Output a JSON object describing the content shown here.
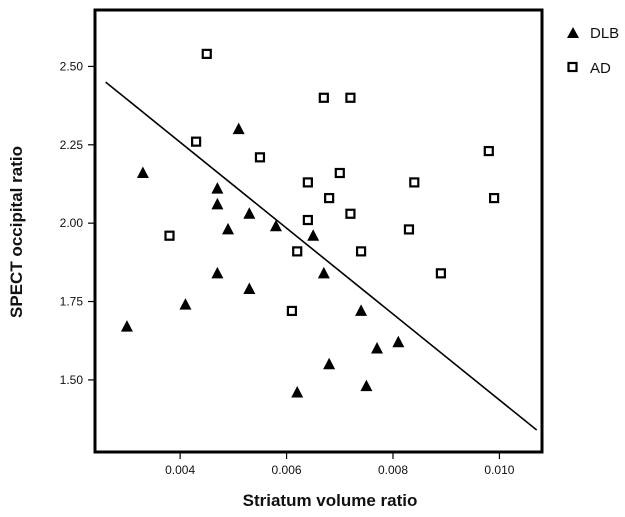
{
  "chart_data": {
    "type": "scatter",
    "xlabel": "Striatum volume ratio",
    "ylabel": "SPECT occipital ratio",
    "xlim": [
      0.0024,
      0.0108
    ],
    "ylim": [
      1.27,
      2.68
    ],
    "x_ticks": [
      0.004,
      0.006,
      0.008,
      0.01
    ],
    "x_tick_labels": [
      "0.004",
      "0.006",
      "0.008",
      "0.010"
    ],
    "y_ticks": [
      1.5,
      1.75,
      2.0,
      2.25,
      2.5
    ],
    "y_tick_labels": [
      "1.50",
      "1.75",
      "2.00",
      "2.25",
      "2.50"
    ],
    "grid": false,
    "legend_position": "top-right, outside plot",
    "series": [
      {
        "name": "DLB",
        "marker": "filled-triangle",
        "color": "#000000",
        "points": [
          [
            0.003,
            1.67
          ],
          [
            0.0033,
            2.16
          ],
          [
            0.0041,
            1.74
          ],
          [
            0.0047,
            2.11
          ],
          [
            0.0047,
            2.06
          ],
          [
            0.0047,
            1.84
          ],
          [
            0.0049,
            1.98
          ],
          [
            0.0051,
            2.3
          ],
          [
            0.0053,
            2.03
          ],
          [
            0.0053,
            1.79
          ],
          [
            0.0058,
            1.99
          ],
          [
            0.0062,
            1.46
          ],
          [
            0.0065,
            1.96
          ],
          [
            0.0067,
            1.84
          ],
          [
            0.0068,
            1.55
          ],
          [
            0.0074,
            1.72
          ],
          [
            0.0075,
            1.48
          ],
          [
            0.0077,
            1.6
          ],
          [
            0.0081,
            1.62
          ]
        ]
      },
      {
        "name": "AD",
        "marker": "open-square",
        "color": "#000000",
        "points": [
          [
            0.0038,
            1.96
          ],
          [
            0.0043,
            2.26
          ],
          [
            0.0045,
            2.54
          ],
          [
            0.0055,
            2.21
          ],
          [
            0.0061,
            1.72
          ],
          [
            0.0062,
            1.91
          ],
          [
            0.0064,
            2.13
          ],
          [
            0.0064,
            2.01
          ],
          [
            0.0067,
            2.4
          ],
          [
            0.0068,
            2.08
          ],
          [
            0.007,
            2.16
          ],
          [
            0.0072,
            2.4
          ],
          [
            0.0072,
            2.03
          ],
          [
            0.0074,
            1.91
          ],
          [
            0.0083,
            1.98
          ],
          [
            0.0084,
            2.13
          ],
          [
            0.0089,
            1.84
          ],
          [
            0.0098,
            2.23
          ],
          [
            0.0099,
            2.08
          ]
        ]
      }
    ],
    "fit_line": {
      "x": [
        0.0026,
        0.0107
      ],
      "y": [
        2.45,
        1.34
      ]
    }
  }
}
